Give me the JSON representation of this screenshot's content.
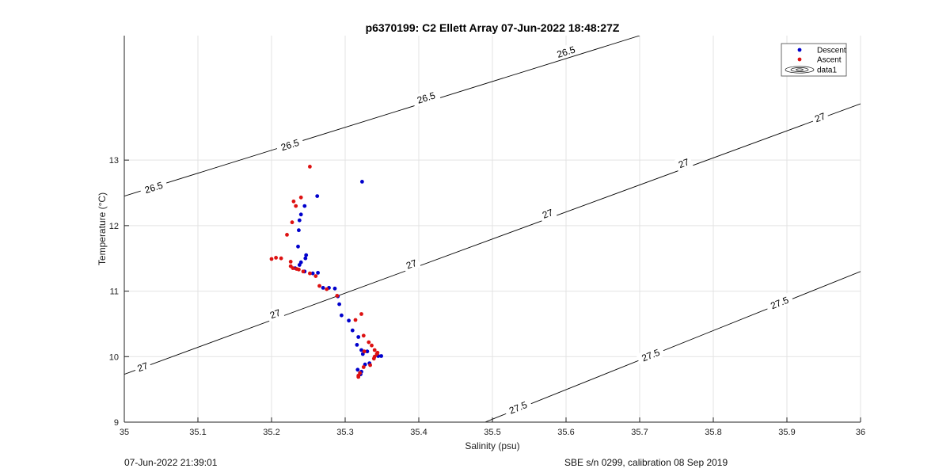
{
  "chart_data": {
    "type": "scatter",
    "title": "p6370199: C2 Ellett Array 07-Jun-2022 18:48:27Z",
    "xlabel": "Salinity (psu)",
    "ylabel": "Temperature (°C)",
    "xlim": [
      35,
      36
    ],
    "ylim": [
      9,
      14.9
    ],
    "xticks": [
      35,
      35.1,
      35.2,
      35.3,
      35.4,
      35.5,
      35.6,
      35.7,
      35.8,
      35.9,
      36
    ],
    "xtick_labels": [
      "35",
      "35.1",
      "35.2",
      "35.3",
      "35.4",
      "35.5",
      "35.6",
      "35.7",
      "35.8",
      "35.9",
      "36"
    ],
    "yticks": [
      9,
      10,
      11,
      12,
      13
    ],
    "ytick_labels": [
      "9",
      "10",
      "11",
      "12",
      "13"
    ],
    "grid": true,
    "legend_position": "top-right",
    "legend": [
      "Descent",
      "Ascent",
      "data1"
    ],
    "series": [
      {
        "name": "Descent",
        "color": "#0000cc",
        "points": [
          [
            35.323,
            12.67
          ],
          [
            35.262,
            12.45
          ],
          [
            35.245,
            12.3
          ],
          [
            35.24,
            12.17
          ],
          [
            35.238,
            12.08
          ],
          [
            35.237,
            11.93
          ],
          [
            35.236,
            11.68
          ],
          [
            35.247,
            11.55
          ],
          [
            35.246,
            11.5
          ],
          [
            35.24,
            11.44
          ],
          [
            35.238,
            11.4
          ],
          [
            35.232,
            11.35
          ],
          [
            35.245,
            11.3
          ],
          [
            35.256,
            11.27
          ],
          [
            35.263,
            11.28
          ],
          [
            35.27,
            11.05
          ],
          [
            35.278,
            11.05
          ],
          [
            35.286,
            11.04
          ],
          [
            35.29,
            10.92
          ],
          [
            35.292,
            10.8
          ],
          [
            35.295,
            10.63
          ],
          [
            35.305,
            10.55
          ],
          [
            35.31,
            10.4
          ],
          [
            35.318,
            10.3
          ],
          [
            35.316,
            10.18
          ],
          [
            35.322,
            10.1
          ],
          [
            35.324,
            10.04
          ],
          [
            35.33,
            10.08
          ],
          [
            35.345,
            10.01
          ],
          [
            35.349,
            10.01
          ],
          [
            35.333,
            9.9
          ],
          [
            35.327,
            9.88
          ],
          [
            35.317,
            9.8
          ],
          [
            35.322,
            9.77
          ],
          [
            35.321,
            9.73
          ]
        ]
      },
      {
        "name": "Ascent",
        "color": "#dd1111",
        "points": [
          [
            35.252,
            12.9
          ],
          [
            35.24,
            12.43
          ],
          [
            35.23,
            12.37
          ],
          [
            35.233,
            12.3
          ],
          [
            35.228,
            12.05
          ],
          [
            35.221,
            11.86
          ],
          [
            35.2,
            11.49
          ],
          [
            35.206,
            11.51
          ],
          [
            35.213,
            11.5
          ],
          [
            35.226,
            11.45
          ],
          [
            35.226,
            11.38
          ],
          [
            35.229,
            11.35
          ],
          [
            35.234,
            11.34
          ],
          [
            35.237,
            11.33
          ],
          [
            35.243,
            11.3
          ],
          [
            35.252,
            11.27
          ],
          [
            35.26,
            11.23
          ],
          [
            35.265,
            11.08
          ],
          [
            35.275,
            11.03
          ],
          [
            35.289,
            10.93
          ],
          [
            35.314,
            10.56
          ],
          [
            35.322,
            10.65
          ],
          [
            35.325,
            10.32
          ],
          [
            35.332,
            10.22
          ],
          [
            35.336,
            10.17
          ],
          [
            35.34,
            10.1
          ],
          [
            35.326,
            10.08
          ],
          [
            35.344,
            10.06
          ],
          [
            35.343,
            10.04
          ],
          [
            35.34,
            10.0
          ],
          [
            35.339,
            9.97
          ],
          [
            35.334,
            9.87
          ],
          [
            35.325,
            9.84
          ],
          [
            35.32,
            9.75
          ],
          [
            35.318,
            9.71
          ],
          [
            35.318,
            9.69
          ]
        ]
      }
    ],
    "density_contours": [
      {
        "level": "26.5",
        "line": [
          [
            35,
            12.45
          ],
          [
            35.7,
            14.9
          ]
        ],
        "labels": [
          [
            35.04,
            12.58
          ],
          [
            35.225,
            13.23
          ],
          [
            35.41,
            13.95
          ],
          [
            35.6,
            14.65
          ]
        ]
      },
      {
        "level": "27",
        "line": [
          [
            35,
            9.73
          ],
          [
            36,
            13.86
          ]
        ],
        "labels": [
          [
            35.025,
            9.84
          ],
          [
            35.205,
            10.65
          ],
          [
            35.39,
            11.41
          ],
          [
            35.575,
            12.18
          ],
          [
            35.76,
            12.95
          ],
          [
            35.945,
            13.65
          ]
        ]
      },
      {
        "level": "27.5",
        "line": [
          [
            35.49,
            9.0
          ],
          [
            36,
            11.3
          ]
        ],
        "labels": [
          [
            35.535,
            9.22
          ],
          [
            35.715,
            10.02
          ],
          [
            35.89,
            10.82
          ]
        ]
      }
    ]
  },
  "footer": {
    "left": "07-Jun-2022 21:39:01",
    "right": "SBE s/n 0299, calibration 08 Sep 2019"
  }
}
